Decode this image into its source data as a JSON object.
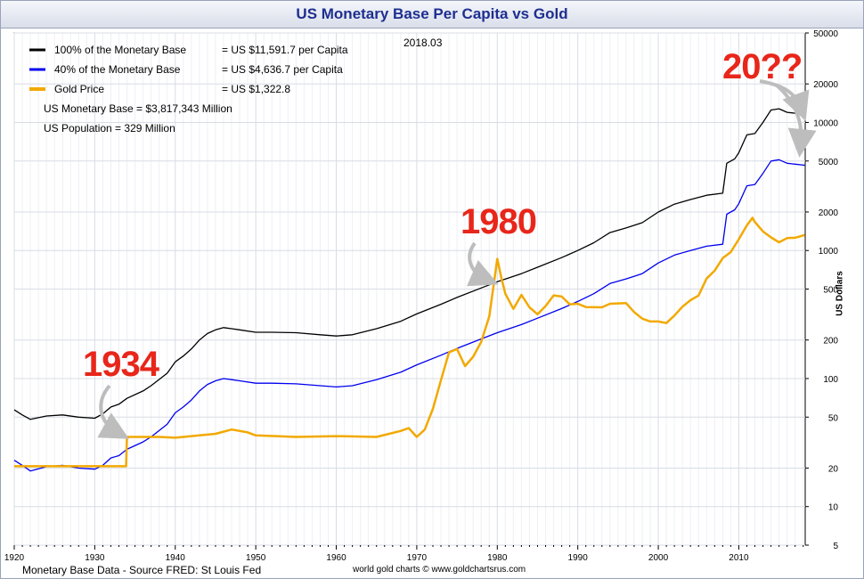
{
  "title": "US Monetary Base Per Capita vs Gold",
  "date_label": "2018.03",
  "legend": [
    {
      "label": "100% of the Monetary Base",
      "value": "= US $11,591.7 per Capita",
      "color": "#000000"
    },
    {
      "label": "40% of the Monetary Base",
      "value": "= US $4,636.7 per Capita",
      "color": "#0000ee"
    },
    {
      "label": "Gold Price",
      "value": "= US $1,322.8",
      "color": "#f2a900"
    }
  ],
  "info": {
    "monetary_base": "US Monetary Base = $3,817,343 Million",
    "population": "US Population = 329 Million"
  },
  "annotations": {
    "a1934": "1934",
    "a1980": "1980",
    "a20xx": "20??"
  },
  "footer": {
    "source": "Monetary Base Data - Source FRED: St Louis Fed",
    "credit": "world gold charts © www.goldchartsrus.com"
  },
  "chart_data": {
    "type": "line",
    "title": "US Monetary Base Per Capita vs Gold",
    "xlabel": "",
    "ylabel": "US Dollars",
    "y_scale": "log",
    "ylim": [
      5,
      50000
    ],
    "xlim": [
      1920,
      2018.25
    ],
    "x_ticks": [
      1920,
      1930,
      1940,
      1950,
      1960,
      1970,
      1980,
      1990,
      2000,
      2010
    ],
    "y_ticks": [
      5,
      10,
      20,
      50,
      100,
      200,
      500,
      1000,
      2000,
      5000,
      10000,
      20000,
      50000
    ],
    "grid": true,
    "legend_position": "top-left",
    "series": [
      {
        "name": "100% of the Monetary Base",
        "color": "#000000",
        "points": [
          [
            1920,
            57
          ],
          [
            1921,
            52
          ],
          [
            1922,
            48
          ],
          [
            1924,
            51
          ],
          [
            1926,
            52
          ],
          [
            1928,
            50
          ],
          [
            1930,
            49
          ],
          [
            1931,
            53
          ],
          [
            1932,
            60
          ],
          [
            1933,
            63
          ],
          [
            1934,
            70
          ],
          [
            1936,
            80
          ],
          [
            1937,
            88
          ],
          [
            1939,
            110
          ],
          [
            1940,
            135
          ],
          [
            1941,
            150
          ],
          [
            1942,
            170
          ],
          [
            1943,
            200
          ],
          [
            1944,
            225
          ],
          [
            1945,
            240
          ],
          [
            1946,
            250
          ],
          [
            1947,
            245
          ],
          [
            1948,
            240
          ],
          [
            1950,
            230
          ],
          [
            1952,
            230
          ],
          [
            1955,
            228
          ],
          [
            1958,
            220
          ],
          [
            1960,
            215
          ],
          [
            1962,
            220
          ],
          [
            1965,
            245
          ],
          [
            1968,
            280
          ],
          [
            1970,
            320
          ],
          [
            1973,
            380
          ],
          [
            1975,
            430
          ],
          [
            1978,
            510
          ],
          [
            1980,
            570
          ],
          [
            1983,
            660
          ],
          [
            1985,
            740
          ],
          [
            1988,
            880
          ],
          [
            1990,
            1000
          ],
          [
            1992,
            1150
          ],
          [
            1994,
            1380
          ],
          [
            1996,
            1500
          ],
          [
            1998,
            1650
          ],
          [
            2000,
            2000
          ],
          [
            2002,
            2300
          ],
          [
            2004,
            2500
          ],
          [
            2006,
            2700
          ],
          [
            2008,
            2800
          ],
          [
            2008.5,
            4800
          ],
          [
            2009.5,
            5200
          ],
          [
            2010,
            5800
          ],
          [
            2011,
            8000
          ],
          [
            2012,
            8200
          ],
          [
            2013,
            10000
          ],
          [
            2014,
            12500
          ],
          [
            2015,
            12800
          ],
          [
            2016,
            12000
          ],
          [
            2017,
            11800
          ],
          [
            2018.2,
            11592
          ]
        ]
      },
      {
        "name": "40% of the Monetary Base",
        "color": "#0000ee",
        "points": [
          [
            1920,
            23
          ],
          [
            1921,
            21
          ],
          [
            1922,
            19
          ],
          [
            1924,
            20.5
          ],
          [
            1926,
            21
          ],
          [
            1928,
            20
          ],
          [
            1930,
            19.6
          ],
          [
            1931,
            21
          ],
          [
            1932,
            24
          ],
          [
            1933,
            25
          ],
          [
            1934,
            28
          ],
          [
            1936,
            32
          ],
          [
            1937,
            35
          ],
          [
            1939,
            44
          ],
          [
            1940,
            54
          ],
          [
            1941,
            60
          ],
          [
            1942,
            68
          ],
          [
            1943,
            80
          ],
          [
            1944,
            90
          ],
          [
            1945,
            96
          ],
          [
            1946,
            100
          ],
          [
            1947,
            98
          ],
          [
            1948,
            96
          ],
          [
            1950,
            92
          ],
          [
            1952,
            92
          ],
          [
            1955,
            91
          ],
          [
            1958,
            88
          ],
          [
            1960,
            86
          ],
          [
            1962,
            88
          ],
          [
            1965,
            98
          ],
          [
            1968,
            112
          ],
          [
            1970,
            128
          ],
          [
            1973,
            152
          ],
          [
            1975,
            172
          ],
          [
            1978,
            204
          ],
          [
            1980,
            228
          ],
          [
            1983,
            264
          ],
          [
            1985,
            296
          ],
          [
            1988,
            352
          ],
          [
            1990,
            400
          ],
          [
            1992,
            460
          ],
          [
            1994,
            552
          ],
          [
            1996,
            600
          ],
          [
            1998,
            660
          ],
          [
            2000,
            800
          ],
          [
            2002,
            920
          ],
          [
            2004,
            1000
          ],
          [
            2006,
            1080
          ],
          [
            2008,
            1120
          ],
          [
            2008.5,
            1920
          ],
          [
            2009.5,
            2080
          ],
          [
            2010,
            2320
          ],
          [
            2011,
            3200
          ],
          [
            2012,
            3280
          ],
          [
            2013,
            4000
          ],
          [
            2014,
            5000
          ],
          [
            2015,
            5120
          ],
          [
            2016,
            4800
          ],
          [
            2017,
            4720
          ],
          [
            2018.2,
            4637
          ]
        ]
      },
      {
        "name": "Gold Price",
        "color": "#f2a900",
        "points": [
          [
            1920,
            20.67
          ],
          [
            1933.9,
            20.67
          ],
          [
            1934,
            35
          ],
          [
            1938,
            35
          ],
          [
            1940,
            34.5
          ],
          [
            1945,
            37
          ],
          [
            1947,
            40
          ],
          [
            1949,
            38
          ],
          [
            1950,
            36
          ],
          [
            1955,
            35
          ],
          [
            1960,
            35.5
          ],
          [
            1965,
            35
          ],
          [
            1968,
            39
          ],
          [
            1969,
            41
          ],
          [
            1970,
            35
          ],
          [
            1971,
            40
          ],
          [
            1972,
            58
          ],
          [
            1973,
            97
          ],
          [
            1974,
            160
          ],
          [
            1975,
            170
          ],
          [
            1976,
            125
          ],
          [
            1977,
            148
          ],
          [
            1978,
            193
          ],
          [
            1979,
            306
          ],
          [
            1980,
            860
          ],
          [
            1980.5,
            615
          ],
          [
            1981,
            460
          ],
          [
            1982,
            350
          ],
          [
            1983,
            450
          ],
          [
            1984,
            360
          ],
          [
            1985,
            318
          ],
          [
            1986,
            368
          ],
          [
            1987,
            446
          ],
          [
            1988,
            437
          ],
          [
            1989,
            380
          ],
          [
            1990,
            384
          ],
          [
            1991,
            362
          ],
          [
            1993,
            360
          ],
          [
            1994,
            384
          ],
          [
            1996,
            388
          ],
          [
            1997,
            331
          ],
          [
            1998,
            294
          ],
          [
            1999,
            279
          ],
          [
            2000,
            279
          ],
          [
            2001,
            271
          ],
          [
            2002,
            310
          ],
          [
            2003,
            364
          ],
          [
            2004,
            409
          ],
          [
            2005,
            445
          ],
          [
            2006,
            604
          ],
          [
            2007,
            696
          ],
          [
            2008,
            872
          ],
          [
            2009,
            972
          ],
          [
            2010,
            1225
          ],
          [
            2011,
            1571
          ],
          [
            2011.7,
            1800
          ],
          [
            2012,
            1669
          ],
          [
            2013,
            1411
          ],
          [
            2014,
            1266
          ],
          [
            2015,
            1160
          ],
          [
            2016,
            1250
          ],
          [
            2017,
            1257
          ],
          [
            2018.2,
            1323
          ]
        ]
      }
    ]
  }
}
